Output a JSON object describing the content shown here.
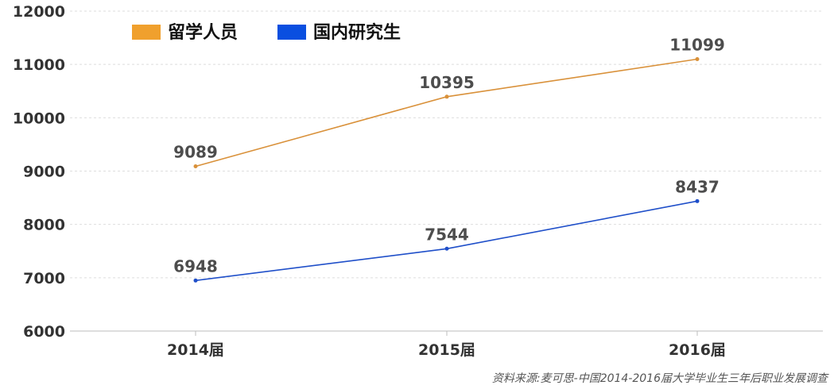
{
  "chart_data": {
    "type": "line",
    "categories": [
      "2014届",
      "2015届",
      "2016届"
    ],
    "series": [
      {
        "name": "留学人员",
        "values": [
          9089,
          10395,
          11099
        ],
        "color": "#F0A02D",
        "line_color": "#D9913A"
      },
      {
        "name": "国内研究生",
        "values": [
          6948,
          7544,
          8437
        ],
        "color": "#0A4FE0",
        "line_color": "#1F4FC9"
      }
    ],
    "ylim": [
      6000,
      12000
    ],
    "yticks": [
      6000,
      7000,
      8000,
      9000,
      10000,
      11000,
      12000
    ],
    "grid": true,
    "legend_position": "top-left",
    "data_labels": true
  },
  "source_text": "资料来源:麦可思-中国2014-2016届大学毕业生三年后职业发展调查"
}
